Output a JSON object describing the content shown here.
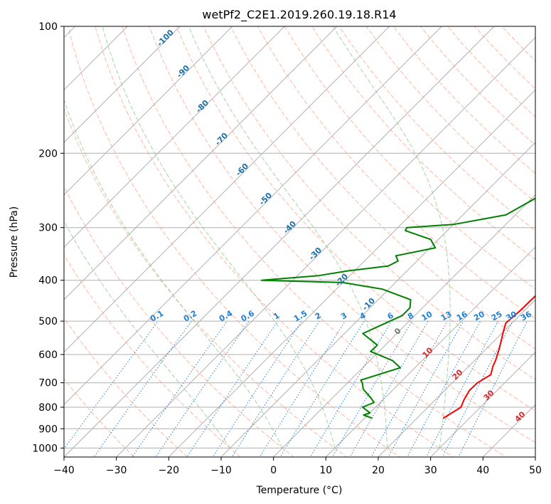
{
  "chart_data": {
    "type": "line",
    "title": "wetPf2_C2E1.2019.260.19.18.R14",
    "xlabel": "Temperature (°C)",
    "ylabel": "Pressure (hPa)",
    "xlim": [
      -40,
      50
    ],
    "ylim": [
      1050,
      100
    ],
    "y_scale": "log",
    "grid": true,
    "x_ticks": [
      "−40",
      "−30",
      "−20",
      "−10",
      "0",
      "10",
      "20",
      "30",
      "40",
      "50"
    ],
    "y_ticks": [
      {
        "p": 100,
        "label": "100"
      },
      {
        "p": 200,
        "label": "200"
      },
      {
        "p": 300,
        "label": "300"
      },
      {
        "p": 400,
        "label": "400"
      },
      {
        "p": 500,
        "label": "500"
      },
      {
        "p": 600,
        "label": "600"
      },
      {
        "p": 700,
        "label": "700"
      },
      {
        "p": 800,
        "label": "800"
      },
      {
        "p": 900,
        "label": "900"
      },
      {
        "p": 1000,
        "label": "1000"
      }
    ],
    "series": [
      {
        "color": "#ff0000",
        "points": [
          [
            25,
            850
          ],
          [
            26.3,
            800
          ],
          [
            25.5,
            770
          ],
          [
            24.7,
            730
          ],
          [
            24.8,
            700
          ],
          [
            25.8,
            670
          ],
          [
            24.6,
            640
          ],
          [
            24.0,
            620
          ],
          [
            22.4,
            580
          ],
          [
            20.0,
            530
          ],
          [
            18.8,
            505
          ],
          [
            19.2,
            470
          ],
          [
            19.3,
            430
          ],
          [
            18.0,
            380
          ],
          [
            15.0,
            330
          ],
          [
            13.3,
            300
          ],
          [
            8.9,
            255
          ],
          [
            6.0,
            220
          ],
          [
            5.0,
            200
          ],
          [
            3.3,
            175
          ],
          [
            0.8,
            155
          ],
          [
            -0.3,
            140
          ],
          [
            1.0,
            125
          ],
          [
            2.5,
            115
          ],
          [
            6.5,
            107
          ],
          [
            7.1,
            100
          ]
        ]
      },
      {
        "color": "#008000",
        "points": [
          [
            11.5,
            850
          ],
          [
            9.2,
            835
          ],
          [
            10.0,
            825
          ],
          [
            7.5,
            800
          ],
          [
            8.8,
            780
          ],
          [
            7.3,
            760
          ],
          [
            4.2,
            725
          ],
          [
            2.8,
            700
          ],
          [
            2.0,
            690
          ],
          [
            7.2,
            645
          ],
          [
            4.3,
            620
          ],
          [
            -1.6,
            590
          ],
          [
            -1.5,
            570
          ],
          [
            -6.5,
            535
          ],
          [
            -4.5,
            510
          ],
          [
            -2.4,
            485
          ],
          [
            -2.4,
            465
          ],
          [
            -3.8,
            445
          ],
          [
            -11.2,
            420
          ],
          [
            -20.0,
            405
          ],
          [
            -36.0,
            400
          ],
          [
            -26.0,
            390
          ],
          [
            -21.3,
            380
          ],
          [
            -14.5,
            370
          ],
          [
            -13.6,
            360
          ],
          [
            -15.0,
            350
          ],
          [
            -9.0,
            335
          ],
          [
            -11.5,
            320
          ],
          [
            -18.0,
            305
          ],
          [
            -18.3,
            300
          ],
          [
            -10.0,
            295
          ],
          [
            -1.8,
            280
          ],
          [
            -0.3,
            265
          ],
          [
            1.8,
            245
          ],
          [
            4.6,
            225
          ],
          [
            4.6,
            215
          ],
          [
            1.3,
            190
          ],
          [
            -0.5,
            175
          ],
          [
            -1.0,
            155
          ],
          [
            -2.4,
            140
          ],
          [
            -3.0,
            125
          ],
          [
            -1.5,
            112
          ],
          [
            0.7,
            100
          ]
        ]
      }
    ],
    "dry_adiabats_C": [
      -30,
      -20,
      -10,
      0,
      10,
      20,
      30,
      40,
      50,
      60,
      70,
      80,
      90,
      100,
      110,
      120,
      130,
      140,
      150,
      160,
      170,
      180
    ],
    "moist_adiabats_C": [
      -10,
      0,
      10,
      20,
      30
    ],
    "isotherms_C": [
      -120,
      -110,
      -100,
      -90,
      -80,
      -70,
      -60,
      -50,
      -40,
      -30,
      -20,
      -10,
      0,
      10,
      20,
      30,
      40,
      50
    ],
    "mixing_ratio_lines": [
      "0.1",
      "0.2",
      "0.4",
      "0.6",
      "1",
      "1.5",
      "2",
      "3",
      "4",
      "6",
      "8",
      "10",
      "13",
      "16",
      "20",
      "25",
      "30",
      "36"
    ],
    "contour_labels_blue": [
      "-100",
      "-90",
      "-80",
      "-70",
      "-60",
      "-50",
      "-40",
      "-30",
      "-20",
      "-10"
    ],
    "contour_labels_red": [
      "10",
      "20",
      "30",
      "40"
    ],
    "contour_label_gray": "0",
    "colors": {
      "temperature": "#ff0000",
      "dewpoint": "#008000",
      "isotherm": "#b0b0b0",
      "dry_adiabat": "#ff9f80",
      "moist_adiabat": "#8fc98f",
      "mixing_ratio": "#1e7fd6",
      "contour_blue": "#1f6fa8",
      "contour_red": "#d62728",
      "contour_gray": "#777777"
    }
  }
}
